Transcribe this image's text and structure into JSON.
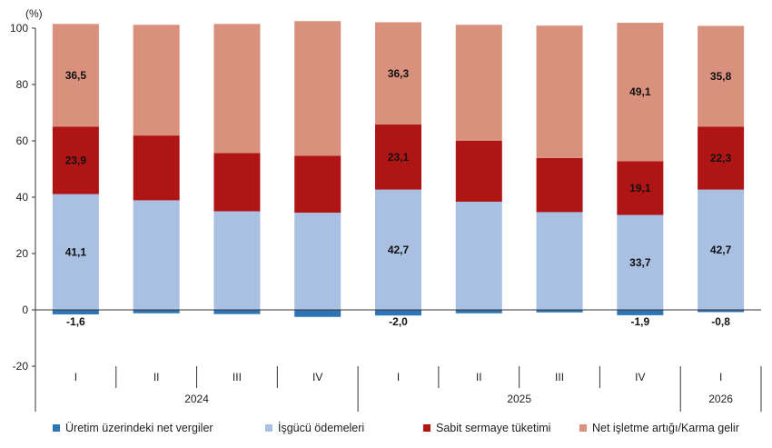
{
  "chart_data": {
    "type": "bar",
    "stacked": true,
    "unit_label": "(%)",
    "ylim": [
      -20,
      100
    ],
    "yticks": [
      "100",
      "80",
      "60",
      "40",
      "20",
      "0",
      "-20"
    ],
    "categories": [
      "I",
      "II",
      "III",
      "IV",
      "I",
      "II",
      "III",
      "IV",
      "I"
    ],
    "years": [
      "2024",
      "2025",
      "2026"
    ],
    "series": [
      {
        "name": "Üretim üzerindeki net vergiler",
        "color": "#2e75b6",
        "values": [
          -1.6,
          -1.2,
          -1.5,
          -2.5,
          -2.0,
          -1.2,
          -0.9,
          -1.9,
          -0.8
        ],
        "labels": [
          "-1,6",
          "",
          "",
          "",
          "-2,0",
          "",
          "",
          "-1,9",
          "-0,8"
        ]
      },
      {
        "name": "İşgücü ödemeleri",
        "color": "#a9c0e3",
        "values": [
          41.1,
          38.9,
          35.0,
          34.5,
          42.7,
          38.4,
          34.7,
          33.7,
          42.7
        ],
        "labels": [
          "41,1",
          "",
          "",
          "",
          "42,7",
          "",
          "",
          "33,7",
          "42,7"
        ]
      },
      {
        "name": "Sabit sermaye tüketimi",
        "color": "#b01515",
        "values": [
          23.9,
          23.0,
          20.7,
          20.2,
          23.1,
          21.6,
          19.2,
          19.1,
          22.3
        ],
        "labels": [
          "23,9",
          "",
          "",
          "",
          "23,1",
          "",
          "",
          "19,1",
          "22,3"
        ]
      },
      {
        "name": "Net işletme artığı/Karma gelir",
        "color": "#d9907d",
        "values": [
          36.5,
          39.3,
          45.8,
          47.8,
          36.3,
          41.2,
          47.0,
          49.1,
          35.8
        ],
        "labels": [
          "36,5",
          "",
          "",
          "",
          "36,3",
          "",
          "",
          "49,1",
          "35,8"
        ]
      }
    ]
  }
}
